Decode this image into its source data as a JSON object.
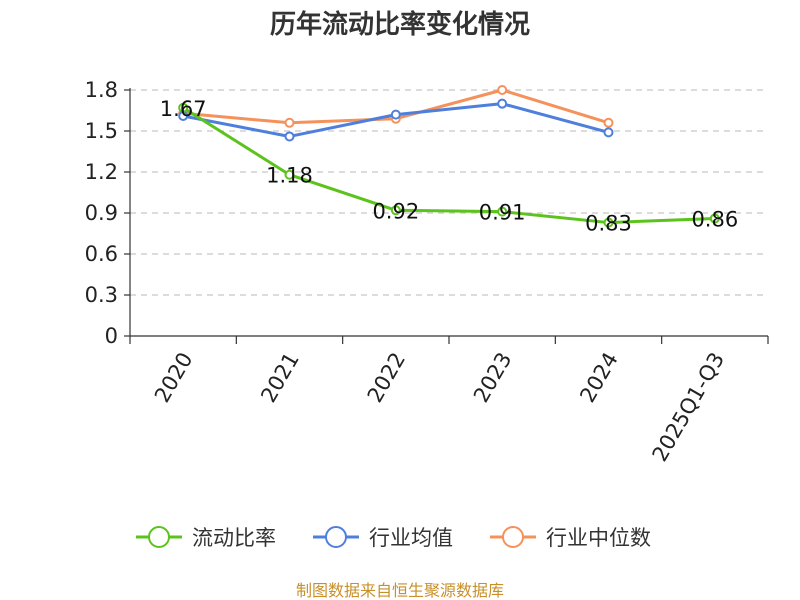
{
  "chart_data": {
    "type": "line",
    "title": "历年流动比率变化情况",
    "categories": [
      "2020",
      "2021",
      "2022",
      "2023",
      "2024",
      "2025Q1-Q3"
    ],
    "ylim": [
      0,
      1.8
    ],
    "yticks": [
      "0",
      "0.3",
      "0.6",
      "0.9",
      "1.2",
      "1.5",
      "1.8"
    ],
    "grid": true,
    "legend_position": "bottom",
    "series": [
      {
        "name": "流动比率",
        "color": "#5cc31c",
        "values": [
          1.67,
          1.18,
          0.92,
          0.91,
          0.83,
          0.86
        ],
        "labels": [
          "1.67",
          "1.18",
          "0.92",
          "0.91",
          "0.83",
          "0.86"
        ]
      },
      {
        "name": "行业均值",
        "color": "#4f7fdc",
        "values": [
          1.61,
          1.46,
          1.62,
          1.7,
          1.49,
          null
        ]
      },
      {
        "name": "行业中位数",
        "color": "#f5915a",
        "values": [
          1.63,
          1.56,
          1.59,
          1.8,
          1.56,
          null
        ]
      }
    ]
  },
  "source": "制图数据来自恒生聚源数据库"
}
